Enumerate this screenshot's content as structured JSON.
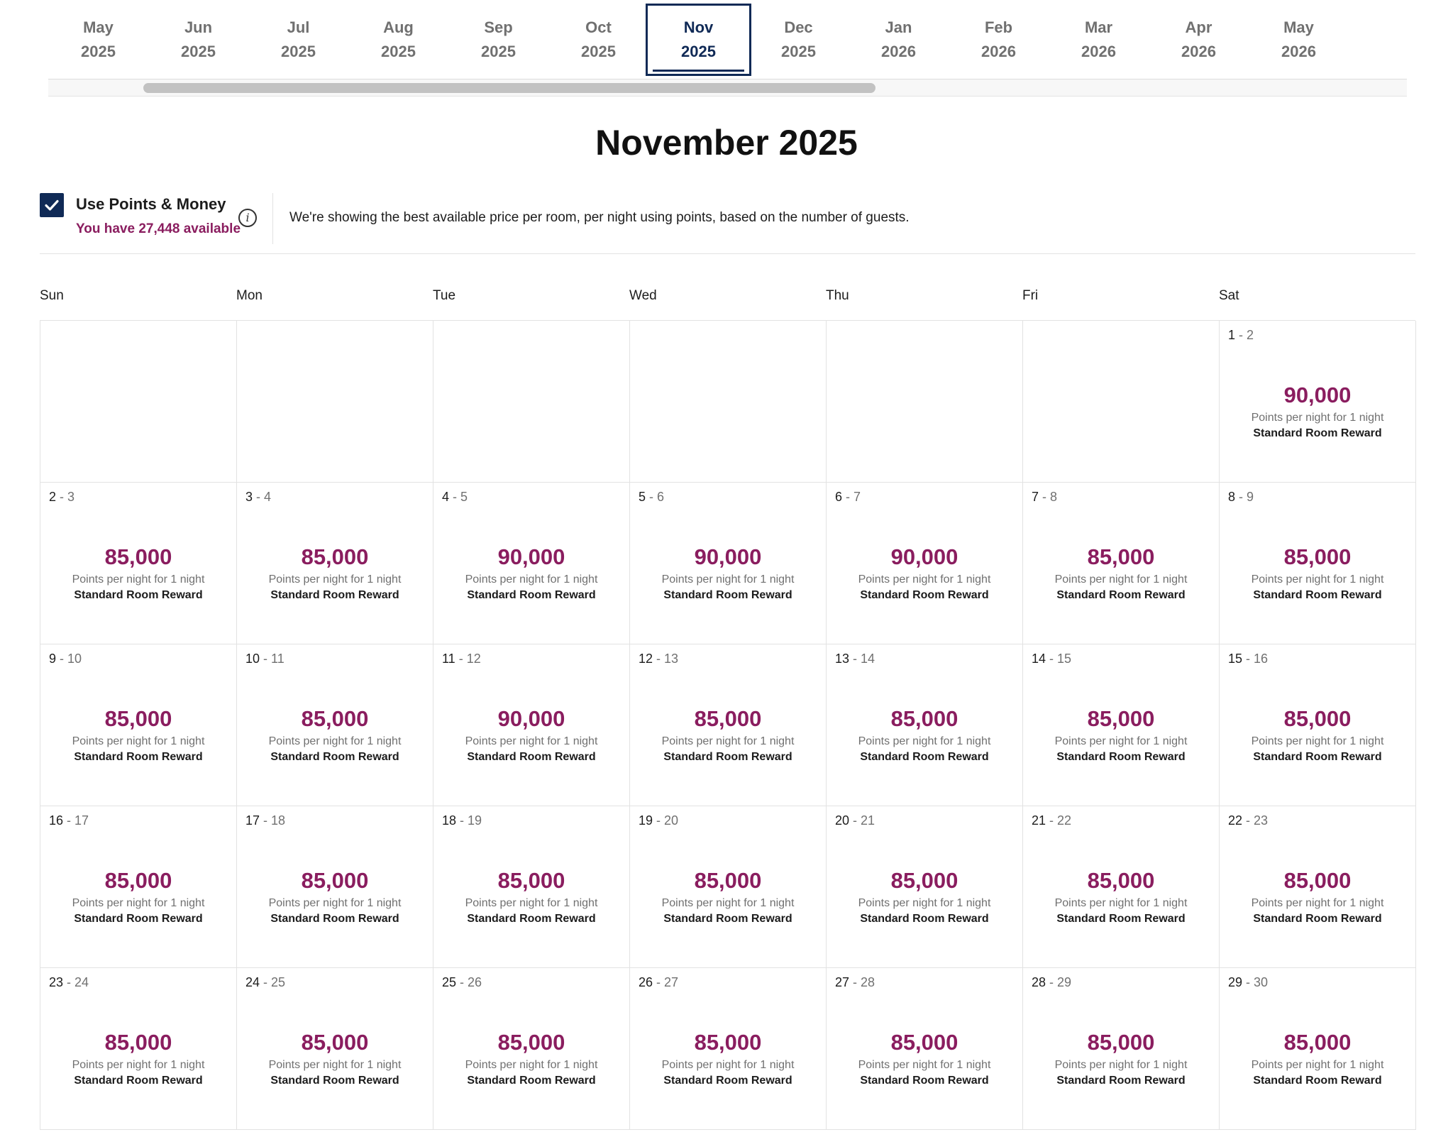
{
  "months": [
    {
      "month": "May",
      "year": "2025"
    },
    {
      "month": "Jun",
      "year": "2025"
    },
    {
      "month": "Jul",
      "year": "2025"
    },
    {
      "month": "Aug",
      "year": "2025"
    },
    {
      "month": "Sep",
      "year": "2025"
    },
    {
      "month": "Oct",
      "year": "2025"
    },
    {
      "month": "Nov",
      "year": "2025"
    },
    {
      "month": "Dec",
      "year": "2025"
    },
    {
      "month": "Jan",
      "year": "2026"
    },
    {
      "month": "Feb",
      "year": "2026"
    },
    {
      "month": "Mar",
      "year": "2026"
    },
    {
      "month": "Apr",
      "year": "2026"
    },
    {
      "month": "May",
      "year": "2026"
    }
  ],
  "active_month_index": 6,
  "title": "November 2025",
  "points": {
    "label": "Use Points & Money",
    "available": "You have 27,448 available",
    "note": "We're showing the best available price per room, per night using points, based on the number of guests.",
    "checked": true,
    "info_icon": "info-icon"
  },
  "weekdays": [
    "Sun",
    "Mon",
    "Tue",
    "Wed",
    "Thu",
    "Fri",
    "Sat"
  ],
  "labels": {
    "per_night": "Points per night for 1 night",
    "reward": "Standard Room Reward"
  },
  "days": [
    {
      "from": "1",
      "to": "2",
      "price": "90,000"
    },
    {
      "from": "2",
      "to": "3",
      "price": "85,000"
    },
    {
      "from": "3",
      "to": "4",
      "price": "85,000"
    },
    {
      "from": "4",
      "to": "5",
      "price": "90,000"
    },
    {
      "from": "5",
      "to": "6",
      "price": "90,000"
    },
    {
      "from": "6",
      "to": "7",
      "price": "90,000"
    },
    {
      "from": "7",
      "to": "8",
      "price": "85,000"
    },
    {
      "from": "8",
      "to": "9",
      "price": "85,000"
    },
    {
      "from": "9",
      "to": "10",
      "price": "85,000"
    },
    {
      "from": "10",
      "to": "11",
      "price": "85,000"
    },
    {
      "from": "11",
      "to": "12",
      "price": "90,000"
    },
    {
      "from": "12",
      "to": "13",
      "price": "85,000"
    },
    {
      "from": "13",
      "to": "14",
      "price": "85,000"
    },
    {
      "from": "14",
      "to": "15",
      "price": "85,000"
    },
    {
      "from": "15",
      "to": "16",
      "price": "85,000"
    },
    {
      "from": "16",
      "to": "17",
      "price": "85,000"
    },
    {
      "from": "17",
      "to": "18",
      "price": "85,000"
    },
    {
      "from": "18",
      "to": "19",
      "price": "85,000"
    },
    {
      "from": "19",
      "to": "20",
      "price": "85,000"
    },
    {
      "from": "20",
      "to": "21",
      "price": "85,000"
    },
    {
      "from": "21",
      "to": "22",
      "price": "85,000"
    },
    {
      "from": "22",
      "to": "23",
      "price": "85,000"
    },
    {
      "from": "23",
      "to": "24",
      "price": "85,000"
    },
    {
      "from": "24",
      "to": "25",
      "price": "85,000"
    },
    {
      "from": "25",
      "to": "26",
      "price": "85,000"
    },
    {
      "from": "26",
      "to": "27",
      "price": "85,000"
    },
    {
      "from": "27",
      "to": "28",
      "price": "85,000"
    },
    {
      "from": "28",
      "to": "29",
      "price": "85,000"
    },
    {
      "from": "29",
      "to": "30",
      "price": "85,000"
    }
  ],
  "first_weekday_offset": 6,
  "colors": {
    "navy": "#102a56",
    "price": "#8a1d5f",
    "muted": "#707070"
  }
}
